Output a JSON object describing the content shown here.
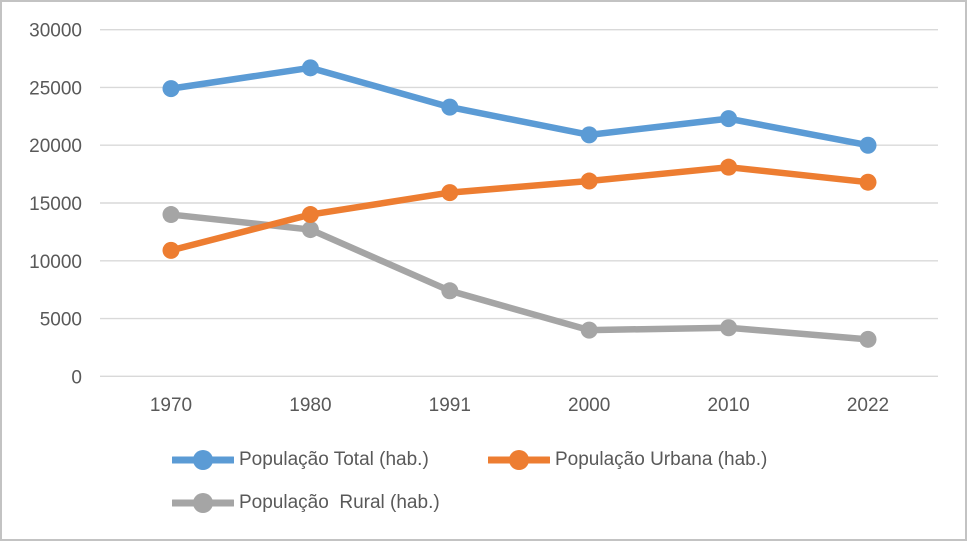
{
  "chart_data": {
    "type": "line",
    "x": [
      "1970",
      "1980",
      "1991",
      "2000",
      "2010",
      "2022"
    ],
    "series": [
      {
        "name": "População Total (hab.)",
        "color": "#5B9BD5",
        "values": [
          24900,
          26700,
          23300,
          20900,
          22300,
          20000
        ]
      },
      {
        "name": "População Urbana (hab.)",
        "color": "#ED7D31",
        "values": [
          10900,
          14000,
          15900,
          16900,
          18100,
          16800
        ]
      },
      {
        "name": "População  Rural (hab.)",
        "color": "#A5A5A5",
        "values": [
          14000,
          12700,
          7400,
          4000,
          4200,
          3200
        ]
      }
    ],
    "title": "",
    "xlabel": "",
    "ylabel": "",
    "ylim": [
      0,
      30000
    ],
    "yticks": [
      0,
      5000,
      10000,
      15000,
      20000,
      25000,
      30000
    ],
    "grid": true,
    "legend_position": "bottom"
  },
  "colors": {
    "gridline": "#D9D9D9",
    "axis_text": "#595959",
    "frame_border": "#C3C3C3",
    "background": "#FFFFFF"
  }
}
